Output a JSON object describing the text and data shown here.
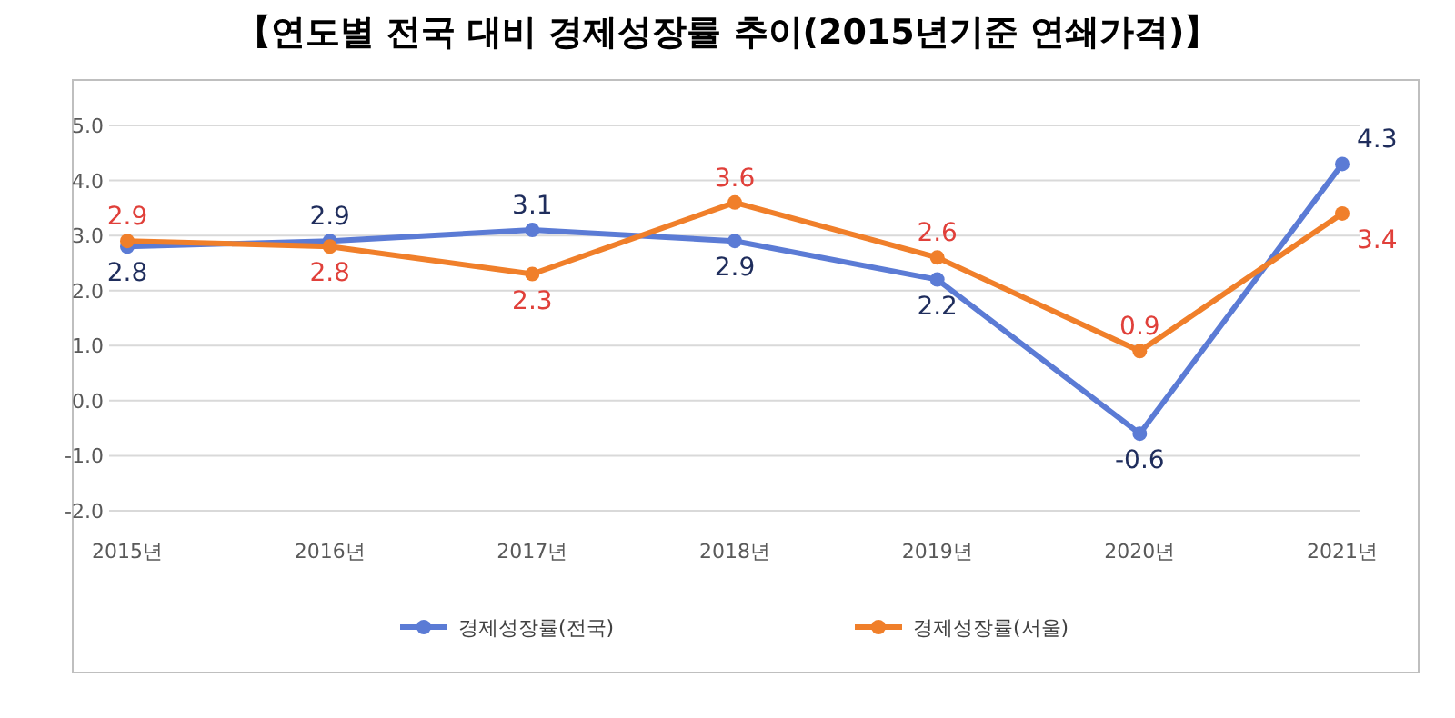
{
  "chart_data": {
    "type": "line",
    "title": "【연도별 전국 대비 경제성장률 추이(2015년기준 연쇄가격)】",
    "categories": [
      "2015년",
      "2016년",
      "2017년",
      "2018년",
      "2019년",
      "2020년",
      "2021년"
    ],
    "series": [
      {
        "name": "경제성장률(전국)",
        "color": "#5b7bd5",
        "values": [
          2.8,
          2.9,
          3.1,
          2.9,
          2.2,
          -0.6,
          4.3
        ]
      },
      {
        "name": "경제성장률(서울)",
        "color": "#f07f2a",
        "values": [
          2.9,
          2.8,
          2.3,
          3.6,
          2.6,
          0.9,
          3.4
        ]
      }
    ],
    "ylim": [
      -2,
      5
    ],
    "yticks": [
      {
        "value": -2,
        "label": "-2.0"
      },
      {
        "value": -1,
        "label": "-1.0"
      },
      {
        "value": 0,
        "label": "0.0"
      },
      {
        "value": 1,
        "label": "1.0"
      },
      {
        "value": 2,
        "label": "2.0"
      },
      {
        "value": 3,
        "label": "3.0"
      },
      {
        "value": 4,
        "label": "4.0"
      },
      {
        "value": 5,
        "label": "5.0"
      }
    ],
    "grid": "y",
    "legend": "bottom",
    "marker": "circle",
    "line_style": "solid",
    "data_labels": true
  }
}
